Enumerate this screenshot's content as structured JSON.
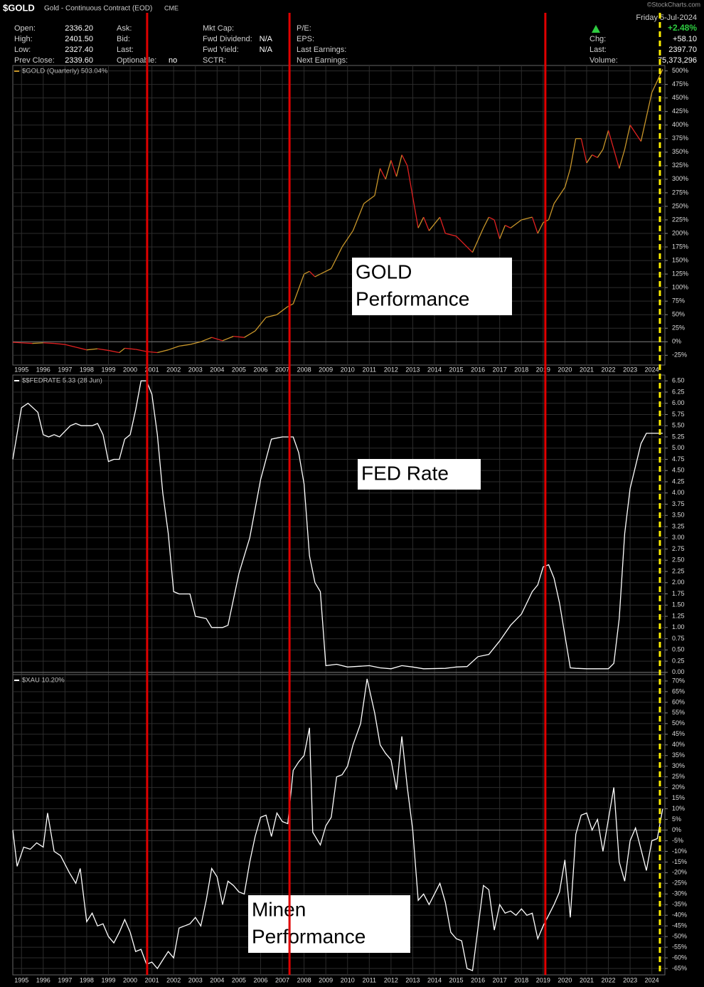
{
  "header": {
    "symbol": "$GOLD",
    "name": "Gold - Continuous Contract (EOD)",
    "exchange": "CME",
    "copyright": "©StockCharts.com",
    "columns": [
      [
        {
          "label": "Open:",
          "value": "2336.20"
        },
        {
          "label": "High:",
          "value": "2401.50"
        },
        {
          "label": "Low:",
          "value": "2327.40"
        },
        {
          "label": "Prev Close:",
          "value": "2339.60"
        }
      ],
      [
        {
          "label": "Ask:"
        },
        {
          "label": "Bid:"
        },
        {
          "label": "Last:"
        },
        {
          "label": "Optionable:",
          "value": "no"
        }
      ],
      [
        {
          "label": "Mkt Cap:"
        },
        {
          "label": "Fwd Dividend:",
          "value": "N/A"
        },
        {
          "label": "Fwd Yield:",
          "value": "N/A"
        },
        {
          "label": "SCTR:"
        }
      ],
      [
        {
          "label": "P/E:"
        },
        {
          "label": "EPS:"
        },
        {
          "label": "Last Earnings:"
        },
        {
          "label": "Next Earnings:"
        }
      ]
    ],
    "date": "Friday 5-Jul-2024",
    "change_pct": "+2.48%",
    "right": [
      {
        "label": "Chg:",
        "value": "+58.10"
      },
      {
        "label": "Last:",
        "value": "2397.70"
      },
      {
        "label": "Volume:",
        "value": "75,373,296"
      }
    ]
  },
  "markers": [
    {
      "x": 2000.78,
      "color": "#e00000",
      "dash": false
    },
    {
      "x": 2007.33,
      "color": "#e00000",
      "dash": false
    },
    {
      "x": 2019.1,
      "color": "#e00000",
      "dash": false
    },
    {
      "x": 2024.37,
      "color": "#ffee00",
      "dash": true
    }
  ],
  "chart_data": [
    {
      "type": "line",
      "xlim": [
        1994.6,
        2024.6
      ],
      "ylim": [
        -43,
        510
      ],
      "xticks": [
        1995,
        1996,
        1997,
        1998,
        1999,
        2000,
        2001,
        2002,
        2003,
        2004,
        2005,
        2006,
        2007,
        2008,
        2009,
        2010,
        2011,
        2012,
        2013,
        2014,
        2015,
        2016,
        2017,
        2018,
        2019,
        2020,
        2021,
        2022,
        2023,
        2024
      ],
      "yticks": [
        {
          "value": -25,
          "label": "-25%"
        },
        {
          "value": 0,
          "label": "0%"
        },
        {
          "value": 25,
          "label": "25%"
        },
        {
          "value": 50,
          "label": "50%"
        },
        {
          "value": 75,
          "label": "75%"
        },
        {
          "value": 100,
          "label": "100%"
        },
        {
          "value": 125,
          "label": "125%"
        },
        {
          "value": 150,
          "label": "150%"
        },
        {
          "value": 175,
          "label": "175%"
        },
        {
          "value": 200,
          "label": "200%"
        },
        {
          "value": 225,
          "label": "225%"
        },
        {
          "value": 250,
          "label": "250%"
        },
        {
          "value": 275,
          "label": "275%"
        },
        {
          "value": 300,
          "label": "300%"
        },
        {
          "value": 325,
          "label": "325%"
        },
        {
          "value": 350,
          "label": "350%"
        },
        {
          "value": 375,
          "label": "375%"
        },
        {
          "value": 400,
          "label": "400%"
        },
        {
          "value": 425,
          "label": "425%"
        },
        {
          "value": 450,
          "label": "450%"
        },
        {
          "value": 475,
          "label": "475%"
        },
        {
          "value": 500,
          "label": "500%"
        }
      ],
      "grid": true,
      "x": [
        1994.6,
        1995.0,
        1995.5,
        1996.0,
        1996.5,
        1997.0,
        1997.5,
        1998.0,
        1998.5,
        1999.0,
        1999.5,
        1999.75,
        2000.25,
        2000.75,
        2001.25,
        2001.75,
        2002.25,
        2002.75,
        2003.25,
        2003.75,
        2004.25,
        2004.75,
        2005.25,
        2005.75,
        2006.25,
        2006.75,
        2007.25,
        2007.5,
        2008.0,
        2008.25,
        2008.5,
        2008.75,
        2009.25,
        2009.75,
        2010.25,
        2010.75,
        2011.25,
        2011.5,
        2011.75,
        2012.0,
        2012.25,
        2012.5,
        2012.75,
        2013.25,
        2013.5,
        2013.75,
        2014.25,
        2014.5,
        2015.0,
        2015.5,
        2015.75,
        2016.25,
        2016.5,
        2016.75,
        2017.0,
        2017.25,
        2017.5,
        2018.0,
        2018.5,
        2018.75,
        2019.0,
        2019.25,
        2019.5,
        2020.0,
        2020.25,
        2020.5,
        2020.75,
        2021.0,
        2021.25,
        2021.5,
        2021.75,
        2022.0,
        2022.5,
        2022.75,
        2023.0,
        2023.5,
        2024.0,
        2024.5
      ],
      "series": [
        {
          "name": "$GOLD (Quarterly) 503.04%",
          "color": "#c8962a",
          "down_color": "#e02020",
          "values": [
            -1,
            -2,
            -3,
            -2,
            -3,
            -5,
            -10,
            -15,
            -13,
            -16,
            -20,
            -12,
            -14,
            -18,
            -20,
            -15,
            -8,
            -5,
            0,
            8,
            2,
            10,
            8,
            20,
            45,
            50,
            65,
            70,
            125,
            130,
            120,
            125,
            135,
            175,
            205,
            255,
            270,
            320,
            300,
            335,
            305,
            345,
            325,
            210,
            230,
            205,
            230,
            200,
            195,
            175,
            165,
            210,
            230,
            225,
            190,
            215,
            210,
            225,
            230,
            200,
            220,
            225,
            255,
            285,
            320,
            375,
            375,
            330,
            345,
            340,
            355,
            390,
            320,
            355,
            400,
            370,
            460,
            503
          ]
        }
      ],
      "annotation": {
        "lines": [
          "GOLD",
          "Performance"
        ]
      }
    },
    {
      "type": "line",
      "xlim": [
        1994.6,
        2024.6
      ],
      "ylim": [
        -0.05,
        6.63
      ],
      "yticks": [
        {
          "value": 0,
          "label": "0.00"
        },
        {
          "value": 0.25,
          "label": "0.25"
        },
        {
          "value": 0.5,
          "label": "0.50"
        },
        {
          "value": 0.75,
          "label": "0.75"
        },
        {
          "value": 1,
          "label": "1.00"
        },
        {
          "value": 1.25,
          "label": "1.25"
        },
        {
          "value": 1.5,
          "label": "1.50"
        },
        {
          "value": 1.75,
          "label": "1.75"
        },
        {
          "value": 2,
          "label": "2.00"
        },
        {
          "value": 2.25,
          "label": "2.25"
        },
        {
          "value": 2.5,
          "label": "2.50"
        },
        {
          "value": 2.75,
          "label": "2.75"
        },
        {
          "value": 3,
          "label": "3.00"
        },
        {
          "value": 3.25,
          "label": "3.25"
        },
        {
          "value": 3.5,
          "label": "3.50"
        },
        {
          "value": 3.75,
          "label": "3.75"
        },
        {
          "value": 4,
          "label": "4.00"
        },
        {
          "value": 4.25,
          "label": "4.25"
        },
        {
          "value": 4.5,
          "label": "4.50"
        },
        {
          "value": 4.75,
          "label": "4.75"
        },
        {
          "value": 5,
          "label": "5.00"
        },
        {
          "value": 5.25,
          "label": "5.25"
        },
        {
          "value": 5.5,
          "label": "5.50"
        },
        {
          "value": 5.75,
          "label": "5.75"
        },
        {
          "value": 6,
          "label": "6.00"
        },
        {
          "value": 6.25,
          "label": "6.25"
        },
        {
          "value": 6.5,
          "label": "6.50"
        }
      ],
      "grid": true,
      "x": [
        1994.6,
        1995.0,
        1995.3,
        1995.75,
        1996.0,
        1996.25,
        1996.5,
        1996.75,
        1997.25,
        1997.5,
        1997.75,
        1998.25,
        1998.5,
        1998.75,
        1999.0,
        1999.25,
        1999.5,
        1999.75,
        2000.0,
        2000.25,
        2000.5,
        2000.75,
        2001.0,
        2001.25,
        2001.5,
        2001.75,
        2002.0,
        2002.25,
        2002.75,
        2003.0,
        2003.5,
        2003.75,
        2004.25,
        2004.5,
        2005.0,
        2005.5,
        2006.0,
        2006.5,
        2007.0,
        2007.5,
        2007.75,
        2008.0,
        2008.25,
        2008.5,
        2008.75,
        2009.0,
        2009.5,
        2010.0,
        2011.0,
        2011.5,
        2012.0,
        2012.5,
        2013.0,
        2013.5,
        2014.5,
        2015.0,
        2015.5,
        2016.0,
        2016.5,
        2017.0,
        2017.5,
        2018.0,
        2018.5,
        2018.75,
        2019.0,
        2019.25,
        2019.5,
        2019.75,
        2020.25,
        2020.5,
        2021.0,
        2021.5,
        2022.0,
        2022.25,
        2022.5,
        2022.75,
        2023.0,
        2023.5,
        2023.75,
        2024.5
      ],
      "series": [
        {
          "name": "$$FEDRATE 5.33 (28 Jun)",
          "color": "#ffffff",
          "values": [
            4.75,
            5.9,
            6.0,
            5.8,
            5.3,
            5.25,
            5.3,
            5.25,
            5.5,
            5.55,
            5.5,
            5.5,
            5.55,
            5.3,
            4.7,
            4.75,
            4.75,
            5.2,
            5.3,
            5.85,
            6.5,
            6.5,
            6.2,
            5.3,
            4.0,
            3.1,
            1.8,
            1.75,
            1.75,
            1.25,
            1.2,
            1.0,
            1.0,
            1.05,
            2.2,
            3.0,
            4.3,
            5.2,
            5.25,
            5.25,
            4.9,
            4.2,
            2.6,
            2.0,
            1.8,
            0.15,
            0.18,
            0.12,
            0.15,
            0.1,
            0.08,
            0.15,
            0.12,
            0.08,
            0.09,
            0.12,
            0.13,
            0.35,
            0.4,
            0.7,
            1.05,
            1.3,
            1.8,
            1.95,
            2.35,
            2.4,
            2.1,
            1.55,
            0.1,
            0.09,
            0.08,
            0.08,
            0.08,
            0.2,
            1.2,
            3.1,
            4.1,
            5.1,
            5.33,
            5.33
          ]
        }
      ],
      "annotation": {
        "lines": [
          "FED Rate"
        ]
      }
    },
    {
      "type": "line",
      "xlim": [
        1994.6,
        2024.6
      ],
      "ylim": [
        -68,
        73
      ],
      "xticks": [
        1995,
        1996,
        1997,
        1998,
        1999,
        2000,
        2001,
        2002,
        2003,
        2004,
        2005,
        2006,
        2007,
        2008,
        2009,
        2010,
        2011,
        2012,
        2013,
        2014,
        2015,
        2016,
        2017,
        2018,
        2019,
        2020,
        2021,
        2022,
        2023,
        2024
      ],
      "yticks": [
        {
          "value": -65,
          "label": "-65%"
        },
        {
          "value": -60,
          "label": "-60%"
        },
        {
          "value": -55,
          "label": "-55%"
        },
        {
          "value": -50,
          "label": "-50%"
        },
        {
          "value": -45,
          "label": "-45%"
        },
        {
          "value": -40,
          "label": "-40%"
        },
        {
          "value": -35,
          "label": "-35%"
        },
        {
          "value": -30,
          "label": "-30%"
        },
        {
          "value": -25,
          "label": "-25%"
        },
        {
          "value": -20,
          "label": "-20%"
        },
        {
          "value": -15,
          "label": "-15%"
        },
        {
          "value": -10,
          "label": "-10%"
        },
        {
          "value": -5,
          "label": "-5%"
        },
        {
          "value": 0,
          "label": "0%"
        },
        {
          "value": 5,
          "label": "5%"
        },
        {
          "value": 10,
          "label": "10%"
        },
        {
          "value": 15,
          "label": "15%"
        },
        {
          "value": 20,
          "label": "20%"
        },
        {
          "value": 25,
          "label": "25%"
        },
        {
          "value": 30,
          "label": "30%"
        },
        {
          "value": 35,
          "label": "35%"
        },
        {
          "value": 40,
          "label": "40%"
        },
        {
          "value": 45,
          "label": "45%"
        },
        {
          "value": 50,
          "label": "50%"
        },
        {
          "value": 55,
          "label": "55%"
        },
        {
          "value": 60,
          "label": "60%"
        },
        {
          "value": 65,
          "label": "65%"
        },
        {
          "value": 70,
          "label": "70%"
        }
      ],
      "grid": true,
      "x": [
        1994.6,
        1994.8,
        1995.1,
        1995.4,
        1995.7,
        1996.0,
        1996.2,
        1996.5,
        1996.8,
        1997.2,
        1997.5,
        1997.7,
        1998.0,
        1998.25,
        1998.5,
        1998.75,
        1999.0,
        1999.25,
        1999.5,
        1999.75,
        2000.0,
        2000.25,
        2000.5,
        2000.75,
        2001.0,
        2001.25,
        2001.5,
        2001.75,
        2002.0,
        2002.25,
        2002.5,
        2002.75,
        2003.0,
        2003.25,
        2003.5,
        2003.75,
        2004.0,
        2004.25,
        2004.5,
        2004.75,
        2005.0,
        2005.25,
        2005.5,
        2005.75,
        2006.0,
        2006.25,
        2006.5,
        2006.75,
        2007.0,
        2007.25,
        2007.5,
        2007.75,
        2008.0,
        2008.25,
        2008.4,
        2008.75,
        2009.0,
        2009.25,
        2009.5,
        2009.75,
        2010.0,
        2010.25,
        2010.6,
        2010.9,
        2011.25,
        2011.5,
        2011.75,
        2012.0,
        2012.25,
        2012.5,
        2012.75,
        2013.0,
        2013.25,
        2013.5,
        2013.75,
        2014.25,
        2014.5,
        2014.75,
        2015.0,
        2015.25,
        2015.5,
        2015.75,
        2016.25,
        2016.5,
        2016.75,
        2017.0,
        2017.25,
        2017.5,
        2017.75,
        2018.0,
        2018.25,
        2018.5,
        2018.75,
        2019.0,
        2019.25,
        2019.5,
        2019.75,
        2020.0,
        2020.25,
        2020.5,
        2020.75,
        2021.0,
        2021.25,
        2021.5,
        2021.75,
        2022.25,
        2022.5,
        2022.75,
        2023.0,
        2023.25,
        2023.75,
        2024.0,
        2024.25,
        2024.5
      ],
      "series": [
        {
          "name": "$XAU 10.20%",
          "color": "#ffffff",
          "values": [
            0,
            -17,
            -8,
            -9,
            -6,
            -8,
            8,
            -10,
            -12,
            -20,
            -25,
            -18,
            -43,
            -39,
            -45,
            -44,
            -50,
            -53,
            -48,
            -42,
            -48,
            -57,
            -56,
            -63,
            -62,
            -65,
            -61,
            -57,
            -60,
            -46,
            -45,
            -44,
            -41,
            -45,
            -33,
            -18,
            -22,
            -35,
            -24,
            -26,
            -29,
            -30,
            -15,
            -3,
            6,
            7,
            -3,
            8,
            4,
            3,
            28,
            32,
            35,
            48,
            -1,
            -7,
            2,
            6,
            25,
            26,
            30,
            40,
            50,
            71,
            55,
            40,
            36,
            33,
            19,
            44,
            20,
            0,
            -33,
            -30,
            -35,
            -25,
            -34,
            -48,
            -51,
            -52,
            -65,
            -66,
            -26,
            -28,
            -47,
            -35,
            -39,
            -38,
            -40,
            -37,
            -40,
            -39,
            -51,
            -45,
            -40,
            -35,
            -29,
            -14,
            -41,
            -2,
            7,
            8,
            0,
            5,
            -10,
            20,
            -15,
            -24,
            -5,
            1,
            -19,
            -5,
            -4,
            10
          ]
        }
      ],
      "annotation": {
        "lines": [
          "Minen",
          "Performance"
        ]
      }
    }
  ]
}
